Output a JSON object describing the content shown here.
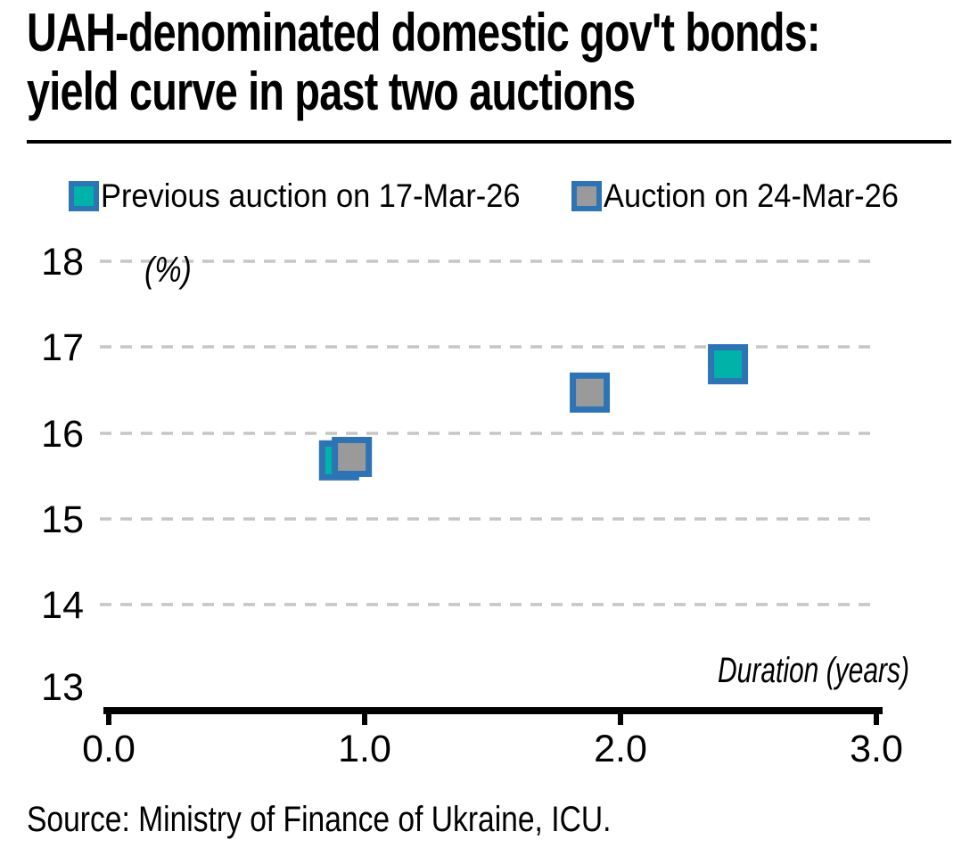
{
  "title": {
    "line1": "UAH-denominated domestic gov't bonds:",
    "line2": "yield curve in past two auctions"
  },
  "legend": [
    {
      "label": "Previous auction on 17-Mar-26",
      "color": "#00B2A8"
    },
    {
      "label": "Auction on 24-Mar-26",
      "color": "#9A9A9A"
    }
  ],
  "source": "Source: Ministry of Finance of Ukraine, ICU.",
  "colors": {
    "marker_border_blue": "#2E74B5",
    "teal": "#00B2A8",
    "gray": "#9A9A9A",
    "gridline_gray": "#C6C6C6",
    "axis_black": "#000000"
  },
  "chart_data": {
    "type": "scatter",
    "title": "UAH-denominated domestic gov't bonds: yield curve in past two auctions",
    "xlabel": "Duration (years)",
    "ylabel": "(%)",
    "xlim": [
      0.0,
      3.0
    ],
    "ylim": [
      13,
      18
    ],
    "xticks": [
      "0.0",
      "1.0",
      "2.0",
      "3.0"
    ],
    "yticks": [
      "18",
      "17",
      "16",
      "15",
      "14",
      "13"
    ],
    "grid": "horizontal-dashed",
    "legend_position": "top",
    "marker": "square",
    "series": [
      {
        "name": "Previous auction on 17-Mar-26",
        "color": "#00B2A8",
        "border": "#2E74B5",
        "points": [
          [
            0.9,
            15.68
          ],
          [
            2.42,
            16.8
          ]
        ]
      },
      {
        "name": "Auction on 24-Mar-26",
        "color": "#9A9A9A",
        "border": "#2E74B5",
        "points": [
          [
            0.95,
            15.72
          ],
          [
            1.88,
            16.47
          ]
        ]
      }
    ]
  }
}
